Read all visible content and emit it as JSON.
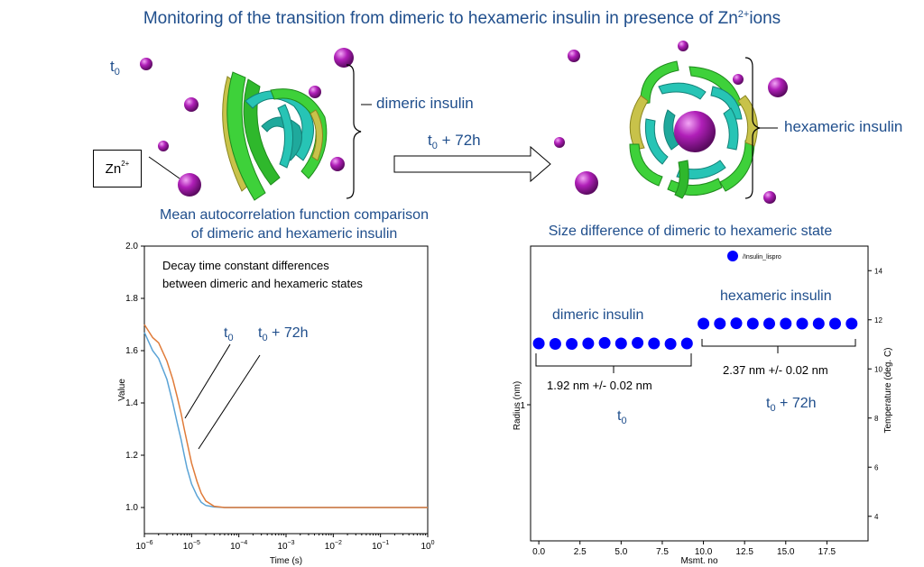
{
  "title": "Monitoring of the transition from dimeric to hexameric insulin in presence of Zn²⁺ions",
  "title_main": "Monitoring of the transition from dimeric to hexameric insulin in presence of Zn",
  "title_sup": "2+",
  "title_end": "ions",
  "illustration": {
    "t0_base": "t",
    "t0_sub": "0",
    "zn_base": "Zn",
    "zn_sup": "2+",
    "dimer_label": "dimeric  insulin",
    "hexamer_label": "hexameric insulin",
    "arrow_label_suffix": " + 72h",
    "colors": {
      "zinc": "#b01fb8",
      "helix_a": "#3ed13a",
      "helix_b": "#27c4b5",
      "sheet": "#c8c24a"
    }
  },
  "chart_data": [
    {
      "type": "line",
      "title": "Mean autocorrelation function comparison of dimeric and hexameric insulin",
      "title_line1": "Mean autocorrelation function comparison",
      "title_line2": "of dimeric and hexameric insulin",
      "xlabel": "Time (s)",
      "ylabel": "Value",
      "xscale": "log",
      "xlim": [
        1e-06,
        1
      ],
      "ylim": [
        0.9,
        2.0
      ],
      "xtick_labels": [
        "10",
        "10",
        "10",
        "10",
        "10",
        "10",
        "10"
      ],
      "xtick_exponents": [
        "−6",
        "−5",
        "−4",
        "−3",
        "−2",
        "−1",
        "0"
      ],
      "yticks": [
        "1.0",
        "1.2",
        "1.4",
        "1.6",
        "1.8",
        "2.0"
      ],
      "annotation_line1": "Decay time constant differences",
      "annotation_line2": "between dimeric and hexameric states",
      "series_label_t0": "t",
      "series_label_t0_sub": "0",
      "series_label_t72_suffix": " + 72h",
      "series": [
        {
          "name": "t0",
          "color": "#5aa3d6",
          "x": [
            1e-06,
            1.5e-06,
            2e-06,
            3e-06,
            4e-06,
            5e-06,
            6e-06,
            7e-06,
            8e-06,
            1e-05,
            1.3e-05,
            1.6e-05,
            2e-05,
            3e-05,
            5e-05,
            0.0001,
            1
          ],
          "y": [
            1.67,
            1.6,
            1.57,
            1.49,
            1.4,
            1.32,
            1.26,
            1.2,
            1.15,
            1.09,
            1.045,
            1.02,
            1.008,
            1.002,
            1.0,
            1.0,
            1.0
          ]
        },
        {
          "name": "t0 + 72h",
          "color": "#e07b39",
          "x": [
            1e-06,
            1.5e-06,
            2e-06,
            3e-06,
            4e-06,
            5e-06,
            6e-06,
            7e-06,
            8e-06,
            1e-05,
            1.3e-05,
            1.6e-05,
            2e-05,
            3e-05,
            5e-05,
            0.0001,
            1
          ],
          "y": [
            1.7,
            1.65,
            1.63,
            1.56,
            1.49,
            1.42,
            1.36,
            1.3,
            1.25,
            1.17,
            1.1,
            1.055,
            1.025,
            1.005,
            1.0,
            1.0,
            1.0
          ]
        }
      ]
    },
    {
      "type": "scatter",
      "title": "Size difference of dimeric to hexameric state",
      "xlabel": "Msmt. no",
      "ylabel": "Radius (nm)",
      "y2label": "Temperature (deg. C)",
      "xlim": [
        -0.5,
        20
      ],
      "xticks": [
        "0.0",
        "2.5",
        "5.0",
        "7.5",
        "10.0",
        "12.5",
        "15.0",
        "17.5"
      ],
      "ytick_left": [
        "1"
      ],
      "yticks_right": [
        "4",
        "6",
        "8",
        "10",
        "12",
        "14"
      ],
      "legend": "/Insulin_lispro",
      "legend_position": "top",
      "point_color": "#0000ff",
      "x": [
        0,
        1,
        2,
        3,
        4,
        5,
        6,
        7,
        8,
        9,
        10,
        11,
        12,
        13,
        14,
        15,
        16,
        17,
        18,
        19
      ],
      "radius_nm": [
        1.92,
        1.91,
        1.91,
        1.92,
        1.93,
        1.92,
        1.93,
        1.92,
        1.91,
        1.92,
        2.37,
        2.37,
        2.38,
        2.37,
        2.37,
        2.37,
        2.37,
        2.37,
        2.37,
        2.37
      ],
      "groups": [
        {
          "label": "dimeric  insulin",
          "value_text": "1.92 nm +/- 0.02 nm",
          "time_base": "t",
          "time_sub": "0",
          "time_suffix": ""
        },
        {
          "label": "hexameric  insulin",
          "value_text": "2.37 nm +/- 0.02 nm",
          "time_base": "t",
          "time_sub": "0",
          "time_suffix": " + 72h"
        }
      ]
    }
  ]
}
